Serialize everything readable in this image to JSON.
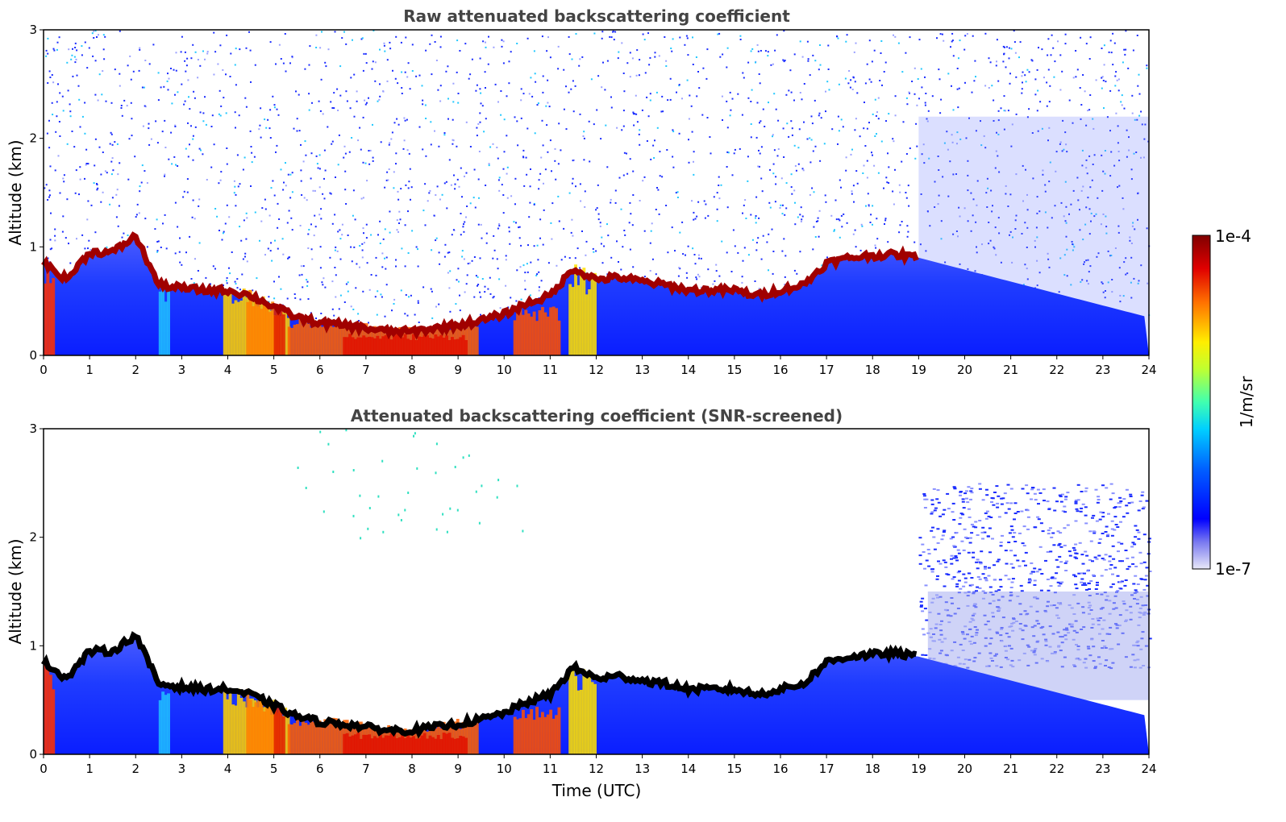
{
  "chart_data": [
    {
      "type": "heatmap",
      "title": "Raw attenuated backscattering coefficient",
      "xlabel": "",
      "ylabel": "Altitude (km)",
      "xlim": [
        0,
        24
      ],
      "ylim": [
        0,
        3
      ],
      "x_ticks": [
        "0",
        "1",
        "2",
        "3",
        "4",
        "5",
        "6",
        "7",
        "8",
        "9",
        "10",
        "11",
        "12",
        "13",
        "14",
        "15",
        "16",
        "17",
        "18",
        "19",
        "20",
        "21",
        "22",
        "23",
        "24"
      ],
      "y_ticks": [
        "0",
        "1",
        "2",
        "3"
      ],
      "screened": false
    },
    {
      "type": "heatmap",
      "title": "Attenuated backscattering coefficient (SNR-screened)",
      "xlabel": "Time (UTC)",
      "ylabel": "Altitude (km)",
      "xlim": [
        0,
        24
      ],
      "ylim": [
        0,
        3
      ],
      "x_ticks": [
        "0",
        "1",
        "2",
        "3",
        "4",
        "5",
        "6",
        "7",
        "8",
        "9",
        "10",
        "11",
        "12",
        "13",
        "14",
        "15",
        "16",
        "17",
        "18",
        "19",
        "20",
        "21",
        "22",
        "23",
        "24"
      ],
      "y_ticks": [
        "0",
        "1",
        "2",
        "3"
      ],
      "screened": true
    }
  ],
  "colorbar": {
    "label": "1/m/sr",
    "min_label": "1e-7",
    "max_label": "1e-4",
    "scale": "log",
    "colormap": "jet"
  },
  "boundary_layer_top_km": {
    "hours": [
      0,
      0.5,
      1,
      1.5,
      2,
      2.5,
      3,
      3.5,
      4,
      4.5,
      5,
      5.5,
      6,
      6.5,
      7,
      7.5,
      8,
      8.5,
      9,
      9.5,
      10,
      10.5,
      11,
      11.5,
      12,
      12.5,
      13,
      13.5,
      14,
      14.5,
      15,
      15.5,
      16,
      16.5,
      17,
      17.5,
      18,
      18.5,
      19
    ],
    "altitude": [
      0.85,
      0.7,
      0.95,
      0.95,
      1.1,
      0.65,
      0.62,
      0.6,
      0.6,
      0.55,
      0.45,
      0.35,
      0.3,
      0.28,
      0.25,
      0.22,
      0.22,
      0.25,
      0.28,
      0.32,
      0.38,
      0.48,
      0.55,
      0.8,
      0.7,
      0.72,
      0.68,
      0.65,
      0.6,
      0.6,
      0.6,
      0.55,
      0.6,
      0.65,
      0.85,
      0.9,
      0.92,
      0.93,
      0.9
    ]
  }
}
